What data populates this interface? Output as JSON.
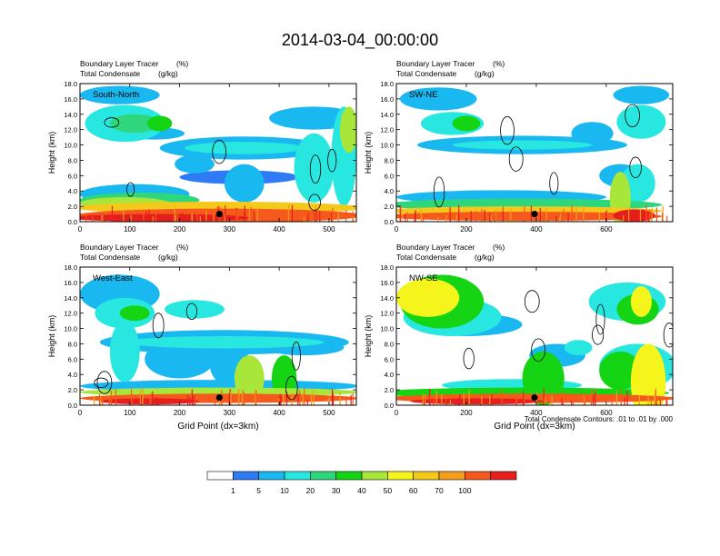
{
  "figure": {
    "title": "2014-03-04_00:00:00",
    "footnote": "Total Condensate Contours: .01 to .01 by .000"
  },
  "colors": {
    "levels": [
      "#ffffff",
      "#2e7bf5",
      "#1ab8f0",
      "#27e7e0",
      "#2ed67c",
      "#14d414",
      "#a8e63a",
      "#f5f51c",
      "#f5c81c",
      "#f59e1c",
      "#f55a1c",
      "#e61e1e"
    ],
    "contour": "#000000",
    "marker": "#000000"
  },
  "colorbar": {
    "labels": [
      "1",
      "5",
      "10",
      "20",
      "30",
      "40",
      "50",
      "60",
      "70",
      "100"
    ]
  },
  "chart_data": [
    {
      "type": "heatmap",
      "panel": "south-north",
      "label": "South-North",
      "title_left_1": "Boundary Layer Tracer",
      "title_right_1": "(%)",
      "title_left_2": "Total Condensate",
      "title_right_2": "(g/kg)",
      "ylabel": "Height (km)",
      "xlabel": "",
      "xlim": [
        0,
        555
      ],
      "ylim": [
        0,
        18
      ],
      "xticks": [
        0,
        100,
        200,
        300,
        400,
        500
      ],
      "yticks": [
        "0.0",
        "2.0",
        "4.0",
        "6.0",
        "8.0",
        "10.0",
        "12.0",
        "14.0",
        "16.0",
        "18.0"
      ],
      "marker_x": 280,
      "marker_y": 1.0
    },
    {
      "type": "heatmap",
      "panel": "sw-ne",
      "label": "SW-NE",
      "title_left_1": "Boundary Layer Tracer",
      "title_right_1": "(%)",
      "title_left_2": "Total Condensate",
      "title_right_2": "(g/kg)",
      "ylabel": "Height (km)",
      "xlabel": "",
      "xlim": [
        0,
        790
      ],
      "ylim": [
        0,
        18
      ],
      "xticks": [
        0,
        200,
        400,
        600
      ],
      "yticks": [
        "0.0",
        "2.0",
        "4.0",
        "6.0",
        "8.0",
        "10.0",
        "12.0",
        "14.0",
        "16.0",
        "18.0"
      ],
      "marker_x": 395,
      "marker_y": 1.0
    },
    {
      "type": "heatmap",
      "panel": "west-east",
      "label": "West-East",
      "title_left_1": "Boundary Layer Tracer",
      "title_right_1": "(%)",
      "title_left_2": "Total Condensate",
      "title_right_2": "(g/kg)",
      "ylabel": "Height (km)",
      "xlabel": "Grid Point (dx=3km)",
      "xlim": [
        0,
        555
      ],
      "ylim": [
        0,
        18
      ],
      "xticks": [
        0,
        100,
        200,
        300,
        400,
        500
      ],
      "yticks": [
        "0.0",
        "2.0",
        "4.0",
        "6.0",
        "8.0",
        "10.0",
        "12.0",
        "14.0",
        "16.0",
        "18.0"
      ],
      "marker_x": 280,
      "marker_y": 1.0
    },
    {
      "type": "heatmap",
      "panel": "nw-se",
      "label": "NW-SE",
      "title_left_1": "Boundary Layer Tracer",
      "title_right_1": "(%)",
      "title_left_2": "Total Condensate",
      "title_right_2": "(g/kg)",
      "ylabel": "Height (km)",
      "xlabel": "Grid Point (dx=3km)",
      "xlim": [
        0,
        790
      ],
      "ylim": [
        0,
        18
      ],
      "xticks": [
        0,
        200,
        400,
        600
      ],
      "yticks": [
        "0.0",
        "2.0",
        "4.0",
        "6.0",
        "8.0",
        "10.0",
        "12.0",
        "14.0",
        "16.0",
        "18.0"
      ],
      "marker_x": 395,
      "marker_y": 1.0
    }
  ]
}
